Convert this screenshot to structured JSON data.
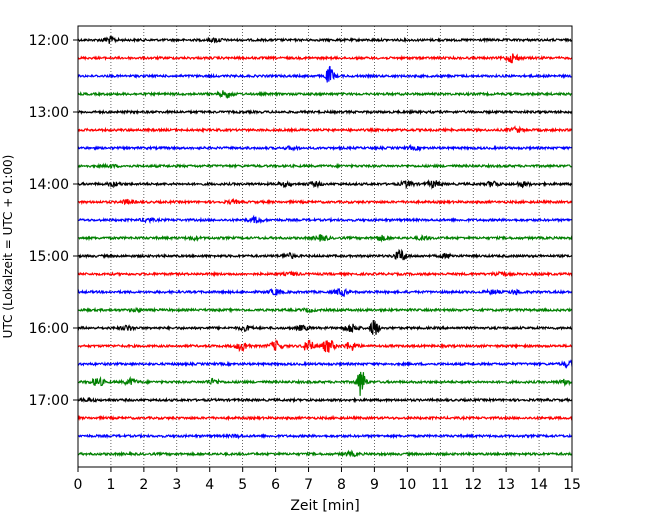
{
  "chart_data": {
    "type": "line",
    "title": "",
    "xlabel": "Zeit  [min]",
    "ylabel": "UTC (Lokalzeit = UTC + 01:00)",
    "xlim": [
      0,
      15
    ],
    "x_ticks": [
      "0",
      "1",
      "2",
      "3",
      "4",
      "5",
      "6",
      "7",
      "8",
      "9",
      "10",
      "11",
      "12",
      "13",
      "14",
      "15"
    ],
    "y_tick_labels": [
      "12:00",
      "13:00",
      "14:00",
      "15:00",
      "16:00",
      "17:00"
    ],
    "grid": "vertical-dotted",
    "trace_colors": [
      "#000000",
      "#ff0000",
      "#0000ff",
      "#008000"
    ],
    "traces": [
      {
        "start": "12:00",
        "events": [
          {
            "t": 0.95,
            "a": 0.35
          },
          {
            "t": 4.2,
            "a": 0.2
          }
        ]
      },
      {
        "start": "12:15",
        "events": [
          {
            "t": 13.2,
            "a": 0.5
          }
        ]
      },
      {
        "start": "12:30",
        "events": [
          {
            "t": 7.65,
            "a": 1.0
          }
        ]
      },
      {
        "start": "12:45",
        "events": [
          {
            "t": 4.5,
            "a": 0.4
          }
        ]
      },
      {
        "start": "13:00",
        "events": []
      },
      {
        "start": "13:15",
        "events": [
          {
            "t": 13.3,
            "a": 0.25
          }
        ]
      },
      {
        "start": "13:30",
        "events": [
          {
            "t": 6.5,
            "a": 0.15
          },
          {
            "t": 10.2,
            "a": 0.15
          }
        ]
      },
      {
        "start": "13:45",
        "events": [
          {
            "t": 1.0,
            "a": 0.12
          }
        ]
      },
      {
        "start": "14:00",
        "events": [
          {
            "t": 1.1,
            "a": 0.2
          },
          {
            "t": 6.3,
            "a": 0.2
          },
          {
            "t": 7.2,
            "a": 0.2
          },
          {
            "t": 10.0,
            "a": 0.3
          },
          {
            "t": 10.8,
            "a": 0.35
          },
          {
            "t": 12.6,
            "a": 0.3
          },
          {
            "t": 13.5,
            "a": 0.25
          }
        ]
      },
      {
        "start": "14:15",
        "events": [
          {
            "t": 1.5,
            "a": 0.2
          },
          {
            "t": 4.7,
            "a": 0.15
          }
        ]
      },
      {
        "start": "14:30",
        "events": [
          {
            "t": 2.1,
            "a": 0.2
          },
          {
            "t": 5.4,
            "a": 0.3
          }
        ]
      },
      {
        "start": "14:45",
        "events": [
          {
            "t": 3.5,
            "a": 0.15
          },
          {
            "t": 7.4,
            "a": 0.3
          },
          {
            "t": 9.2,
            "a": 0.25
          },
          {
            "t": 10.5,
            "a": 0.2
          }
        ]
      },
      {
        "start": "15:00",
        "events": [
          {
            "t": 6.4,
            "a": 0.25
          },
          {
            "t": 9.8,
            "a": 0.6
          },
          {
            "t": 11.2,
            "a": 0.2
          }
        ]
      },
      {
        "start": "15:15",
        "events": [
          {
            "t": 6.5,
            "a": 0.15
          },
          {
            "t": 12.8,
            "a": 0.25
          }
        ]
      },
      {
        "start": "15:30",
        "events": [
          {
            "t": 6.0,
            "a": 0.3
          },
          {
            "t": 8.0,
            "a": 0.35
          },
          {
            "t": 12.6,
            "a": 0.2
          },
          {
            "t": 13.3,
            "a": 0.2
          }
        ]
      },
      {
        "start": "15:45",
        "events": [
          {
            "t": 1.8,
            "a": 0.15
          },
          {
            "t": 7.0,
            "a": 0.15
          }
        ]
      },
      {
        "start": "16:00",
        "events": [
          {
            "t": 1.5,
            "a": 0.25
          },
          {
            "t": 5.1,
            "a": 0.25
          },
          {
            "t": 6.8,
            "a": 0.25
          },
          {
            "t": 8.3,
            "a": 0.45
          },
          {
            "t": 9.0,
            "a": 1.0
          }
        ]
      },
      {
        "start": "16:15",
        "events": [
          {
            "t": 5.0,
            "a": 0.5
          },
          {
            "t": 6.0,
            "a": 0.5
          },
          {
            "t": 7.0,
            "a": 0.95
          },
          {
            "t": 7.6,
            "a": 0.7
          },
          {
            "t": 8.3,
            "a": 0.45
          }
        ]
      },
      {
        "start": "16:30",
        "events": [
          {
            "t": 14.9,
            "a": 0.3
          }
        ]
      },
      {
        "start": "16:45",
        "events": [
          {
            "t": 0.6,
            "a": 0.45
          },
          {
            "t": 1.6,
            "a": 0.35
          },
          {
            "t": 4.1,
            "a": 0.3
          },
          {
            "t": 8.6,
            "a": 1.6
          },
          {
            "t": 14.8,
            "a": 0.25
          }
        ]
      },
      {
        "start": "17:00",
        "events": [
          {
            "t": 0.3,
            "a": 0.15
          }
        ]
      },
      {
        "start": "17:15",
        "events": []
      },
      {
        "start": "17:30",
        "events": [
          {
            "t": 4.8,
            "a": 0.12
          }
        ]
      },
      {
        "start": "17:45",
        "events": [
          {
            "t": 8.3,
            "a": 0.2
          }
        ]
      }
    ]
  }
}
